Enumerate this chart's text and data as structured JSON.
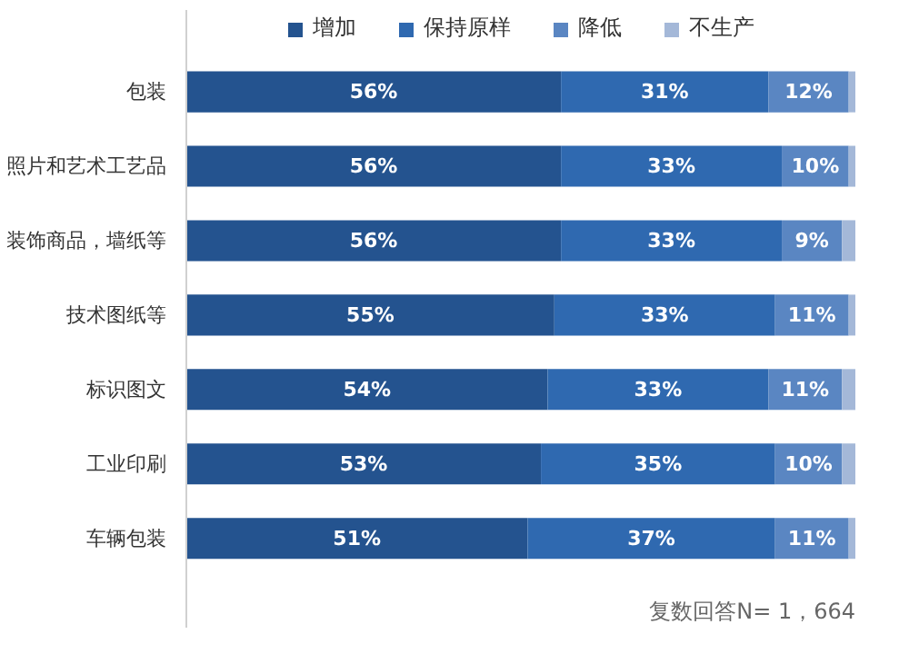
{
  "chart_data": {
    "type": "bar",
    "orientation": "horizontal",
    "stacked": true,
    "categories": [
      "包装",
      "照片和艺术工艺品",
      "装饰商品，墙纸等",
      "技术图纸等",
      "标识图文",
      "工业印刷",
      "车辆包装"
    ],
    "series": [
      {
        "name": "增加",
        "color": "#24538f",
        "values": [
          56,
          56,
          56,
          55,
          54,
          53,
          51
        ],
        "value_labels": [
          "56%",
          "56%",
          "56%",
          "55%",
          "54%",
          "53%",
          "51%"
        ]
      },
      {
        "name": "保持原样",
        "color": "#2f69b0",
        "values": [
          31,
          33,
          33,
          33,
          33,
          35,
          37
        ],
        "value_labels": [
          "31%",
          "33%",
          "33%",
          "33%",
          "33%",
          "35%",
          "37%"
        ]
      },
      {
        "name": "降低",
        "color": "#5a86c2",
        "values": [
          12,
          10,
          9,
          11,
          11,
          10,
          11
        ],
        "value_labels": [
          "12%",
          "10%",
          "9%",
          "11%",
          "11%",
          "10%",
          "11%"
        ]
      },
      {
        "name": "不生产",
        "color": "#a4b8d8",
        "values": [
          1,
          1,
          2,
          1,
          2,
          2,
          1
        ],
        "value_labels": [
          null,
          null,
          null,
          null,
          null,
          null,
          null
        ]
      }
    ],
    "xlim": [
      0,
      100
    ],
    "tick_labels": "y",
    "grid": false,
    "legend": "top",
    "annotations": [
      "复数回答N= 1，664"
    ]
  }
}
